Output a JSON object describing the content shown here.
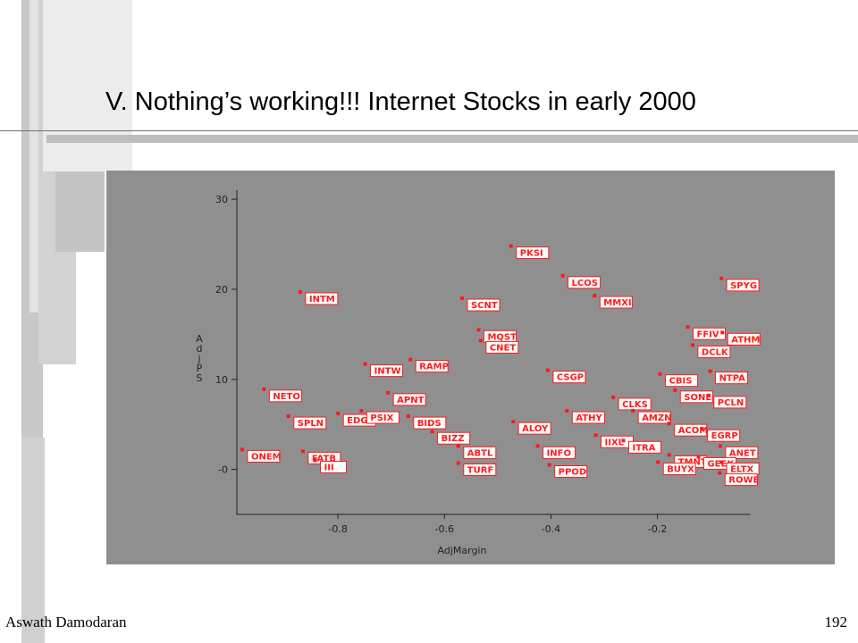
{
  "slide": {
    "title": "V. Nothing’s working!!! Internet Stocks in early 2000",
    "footer_left": "Aswath Damodaran",
    "page_number": "192"
  },
  "colors": {
    "panel": "#8f8f8f",
    "marker": "#ff1a1a",
    "label_border": "#ff1a1a",
    "label_text": "#ff1a1a",
    "axis": "#222222"
  },
  "chart_data": {
    "type": "scatter",
    "title": "",
    "xlabel": "AdjMargin",
    "ylabel": "AdjPS",
    "xlim": [
      -0.99,
      -0.06
    ],
    "ylim": [
      -5,
      31
    ],
    "x_ticks": [
      -0.8,
      -0.6,
      -0.4,
      -0.2
    ],
    "x_tick_labels": [
      "-0.8",
      "-0.6",
      "-0.4",
      "-0.2"
    ],
    "y_ticks": [
      0,
      10,
      20,
      30
    ],
    "y_tick_labels": [
      "-0",
      "10",
      "20",
      "30"
    ],
    "grid": false,
    "legend": "none",
    "points": [
      {
        "label": "PKSI",
        "x": -0.475,
        "y": 24.8
      },
      {
        "label": "LCOS",
        "x": -0.378,
        "y": 21.5
      },
      {
        "label": "MMXI",
        "x": -0.318,
        "y": 19.3
      },
      {
        "label": "SCNT",
        "x": -0.567,
        "y": 19.0
      },
      {
        "label": "INTM",
        "x": -0.871,
        "y": 19.7
      },
      {
        "label": "SPYG",
        "x": -0.08,
        "y": 21.2
      },
      {
        "label": "MQST",
        "x": -0.536,
        "y": 15.5
      },
      {
        "label": "CNET",
        "x": -0.532,
        "y": 14.3
      },
      {
        "label": "FFIV",
        "x": -0.143,
        "y": 15.8
      },
      {
        "label": "ATHM",
        "x": -0.078,
        "y": 15.2
      },
      {
        "label": "DCLK",
        "x": -0.134,
        "y": 13.8
      },
      {
        "label": "RAMP",
        "x": -0.664,
        "y": 12.2
      },
      {
        "label": "INTW",
        "x": -0.749,
        "y": 11.7
      },
      {
        "label": "CSGP",
        "x": -0.406,
        "y": 11.0
      },
      {
        "label": "CBIS",
        "x": -0.195,
        "y": 10.6
      },
      {
        "label": "NTPA",
        "x": -0.101,
        "y": 10.9
      },
      {
        "label": "NETO",
        "x": -0.939,
        "y": 8.9
      },
      {
        "label": "APNT",
        "x": -0.706,
        "y": 8.5
      },
      {
        "label": "SONE",
        "x": -0.167,
        "y": 8.8
      },
      {
        "label": "PCLN",
        "x": -0.104,
        "y": 8.2
      },
      {
        "label": "CLKS",
        "x": -0.283,
        "y": 8.0
      },
      {
        "label": "AMZN",
        "x": -0.246,
        "y": 6.5
      },
      {
        "label": "ATHY",
        "x": -0.37,
        "y": 6.5
      },
      {
        "label": "SPLN",
        "x": -0.893,
        "y": 5.9
      },
      {
        "label": "EDGR",
        "x": -0.8,
        "y": 6.2
      },
      {
        "label": "PSIX",
        "x": -0.756,
        "y": 6.5
      },
      {
        "label": "BIDS",
        "x": -0.668,
        "y": 5.9
      },
      {
        "label": "ALOY",
        "x": -0.471,
        "y": 5.3
      },
      {
        "label": "ACOM",
        "x": -0.178,
        "y": 5.1
      },
      {
        "label": "EGRP",
        "x": -0.116,
        "y": 4.5
      },
      {
        "label": "BIZZ",
        "x": -0.623,
        "y": 4.2
      },
      {
        "label": "IIXL",
        "x": -0.316,
        "y": 3.8
      },
      {
        "label": "ITRA",
        "x": -0.264,
        "y": 3.2
      },
      {
        "label": "ANET",
        "x": -0.082,
        "y": 2.6
      },
      {
        "label": "ONEM",
        "x": -0.98,
        "y": 2.2
      },
      {
        "label": "FATB",
        "x": -0.866,
        "y": 2.0
      },
      {
        "label": "ABTL",
        "x": -0.574,
        "y": 2.6
      },
      {
        "label": "INFO",
        "x": -0.425,
        "y": 2.6
      },
      {
        "label": "TMNT",
        "x": -0.178,
        "y": 1.6
      },
      {
        "label": "GEEK",
        "x": -0.123,
        "y": 1.4
      },
      {
        "label": "TURF",
        "x": -0.574,
        "y": 0.7
      },
      {
        "label": "BUYX",
        "x": -0.199,
        "y": 0.8
      },
      {
        "label": "ELTX",
        "x": -0.08,
        "y": 0.8
      },
      {
        "label": "PPOD",
        "x": -0.403,
        "y": 0.5
      },
      {
        "label": "ROWE",
        "x": -0.083,
        "y": -0.4
      },
      {
        "label": "III",
        "x": -0.843,
        "y": 1.0
      }
    ]
  }
}
